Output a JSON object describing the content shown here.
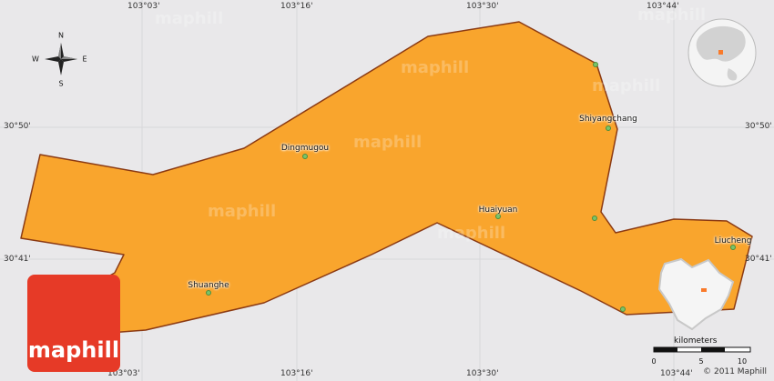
{
  "coords": {
    "top": [
      "103°03'",
      "103°16'",
      "103°30'",
      "103°44'"
    ],
    "bottom": [
      "103°03'",
      "103°16'",
      "103°30'",
      "103°44'"
    ],
    "left": [
      "30°50'",
      "30°41'"
    ],
    "right": [
      "30°50'",
      "30°41'"
    ]
  },
  "compass": {
    "n": "N",
    "s": "S",
    "e": "E",
    "w": "W"
  },
  "places": [
    {
      "name": "Dingmugou"
    },
    {
      "name": "Shiyangchang"
    },
    {
      "name": "Huaiyuan"
    },
    {
      "name": "Liucheng"
    },
    {
      "name": "Shuanghe"
    }
  ],
  "watermark": "maphill",
  "logo": {
    "text": "maphill"
  },
  "scale": {
    "label": "kilometers",
    "ticks": [
      "0",
      "5",
      "10"
    ]
  },
  "copyright": "© 2011 Maphill",
  "colors": {
    "region_fill": "#f9a52d",
    "region_stroke": "#8b3a13",
    "background": "#e9e8ea",
    "logo": "#e63a27",
    "locator_highlight": "#f97a2a"
  },
  "icons": [
    "compass-rose-icon",
    "globe-locator-icon",
    "province-locator-icon"
  ]
}
